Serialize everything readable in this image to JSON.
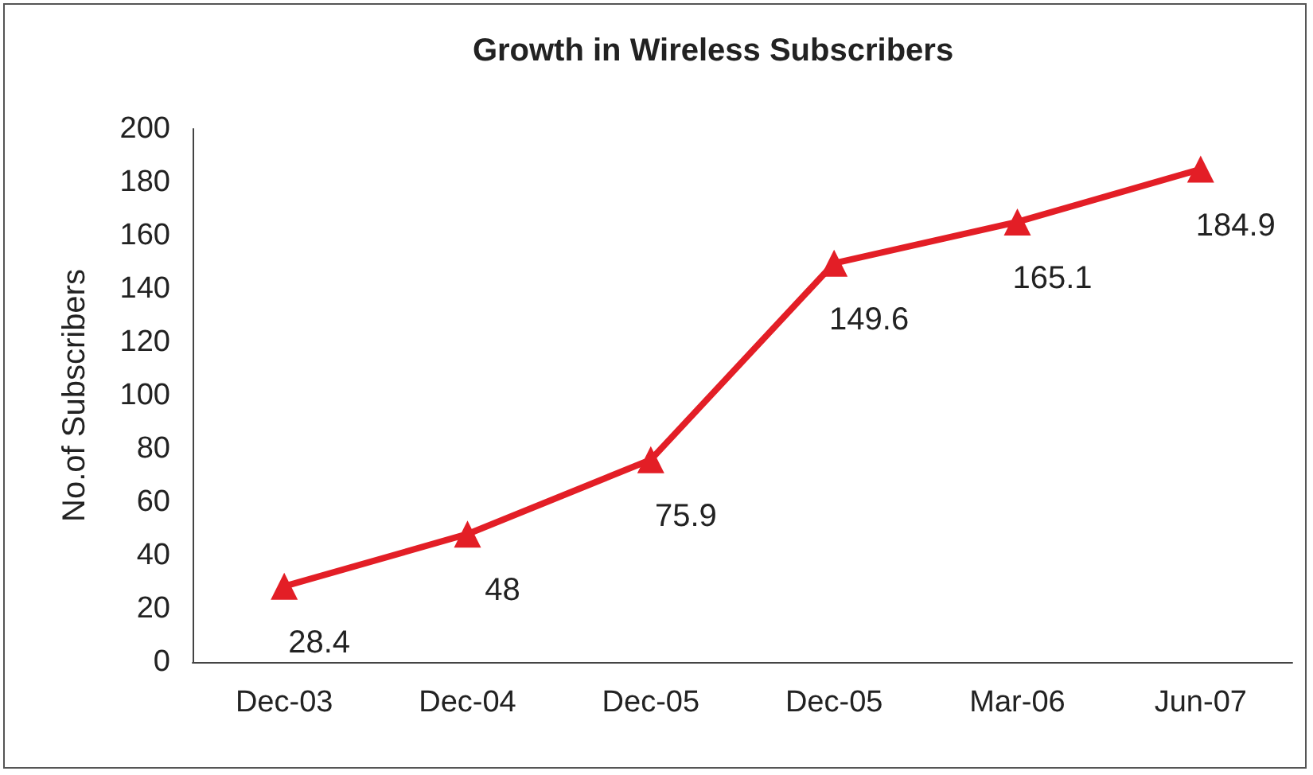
{
  "chart_data": {
    "type": "line",
    "title": "Growth in Wireless Subscribers",
    "ylabel": "No.of Subscribers",
    "categories": [
      "Dec-03",
      "Dec-04",
      "Dec-05",
      "Dec-05",
      "Mar-06",
      "Jun-07"
    ],
    "series": [
      {
        "color": "#e31e26",
        "values": [
          28.4,
          48,
          75.9,
          149.6,
          165.1,
          184.9
        ]
      }
    ],
    "ylim": [
      0,
      200
    ],
    "yticks": [
      0,
      20,
      40,
      60,
      80,
      100,
      120,
      140,
      160,
      180,
      200
    ],
    "grid": false,
    "marker": "triangle",
    "line_style": "solid",
    "data_labels": true
  }
}
